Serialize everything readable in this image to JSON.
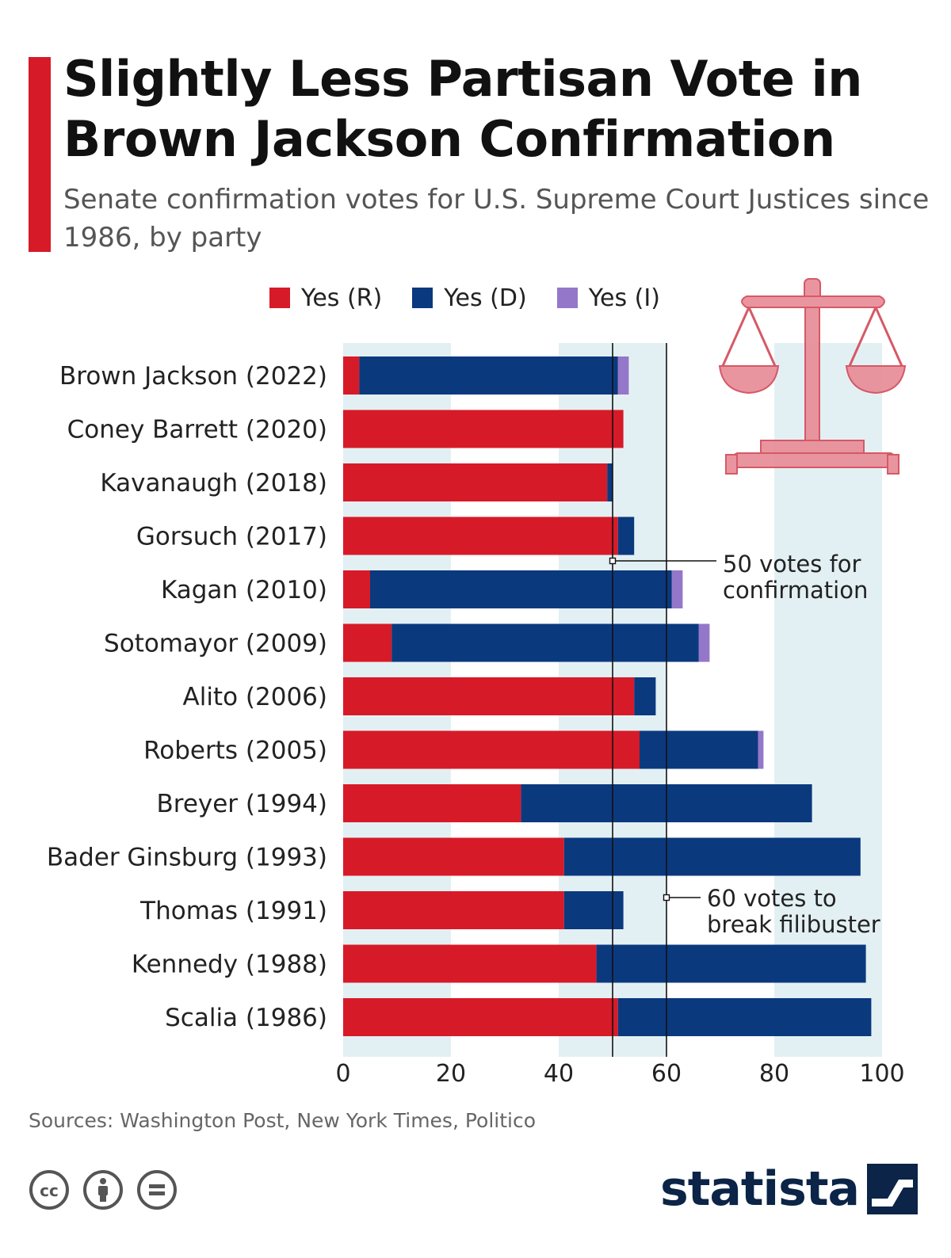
{
  "title": "Slightly Less Partisan Vote in Brown Jackson Confirmation",
  "subtitle": "Senate confirmation votes for U.S. Supreme Court Justices since 1986, by party",
  "source": "Sources: Washington Post, New York Times, Politico",
  "brand": "statista",
  "icons": {
    "cc": "cc-icon",
    "attribution": "attribution-icon",
    "no_derivatives": "no-derivatives-icon",
    "scales": "scales-of-justice-icon",
    "brand_mark": "statista-logo-icon"
  },
  "colors": {
    "accent": "#d71a28",
    "republican": "#d71a28",
    "democrat": "#0b397e",
    "independent": "#9477c9",
    "band": "#e3f0f3",
    "brand": "#0b2447",
    "scales": "#e8909a"
  },
  "chart_data": {
    "type": "bar",
    "orientation": "horizontal",
    "stacked": true,
    "categories": [
      "Brown Jackson (2022)",
      "Coney Barrett (2020)",
      "Kavanaugh (2018)",
      "Gorsuch (2017)",
      "Kagan (2010)",
      "Sotomayor (2009)",
      "Alito (2006)",
      "Roberts (2005)",
      "Breyer (1994)",
      "Bader Ginsburg (1993)",
      "Thomas (1991)",
      "Kennedy (1988)",
      "Scalia (1986)"
    ],
    "series": [
      {
        "name": "Yes (R)",
        "color": "#d71a28",
        "values": [
          3,
          52,
          49,
          51,
          5,
          9,
          54,
          55,
          33,
          41,
          41,
          47,
          51
        ]
      },
      {
        "name": "Yes (D)",
        "color": "#0b397e",
        "values": [
          48,
          0,
          1,
          3,
          56,
          57,
          4,
          22,
          54,
          55,
          11,
          50,
          47
        ]
      },
      {
        "name": "Yes (I)",
        "color": "#9477c9",
        "values": [
          2,
          0,
          0,
          0,
          2,
          2,
          0,
          1,
          0,
          0,
          0,
          0,
          0
        ]
      }
    ],
    "xlim": [
      0,
      100
    ],
    "xticks": [
      0,
      20,
      40,
      60,
      80,
      100
    ],
    "bands": [
      [
        0,
        20
      ],
      [
        40,
        60
      ],
      [
        80,
        100
      ]
    ],
    "reference_lines": [
      {
        "value": 50,
        "label_lines": [
          "50 votes for",
          "confirmation"
        ]
      },
      {
        "value": 60,
        "label_lines": [
          "60 votes to",
          "break filibuster"
        ]
      }
    ],
    "legend_position": "top"
  }
}
